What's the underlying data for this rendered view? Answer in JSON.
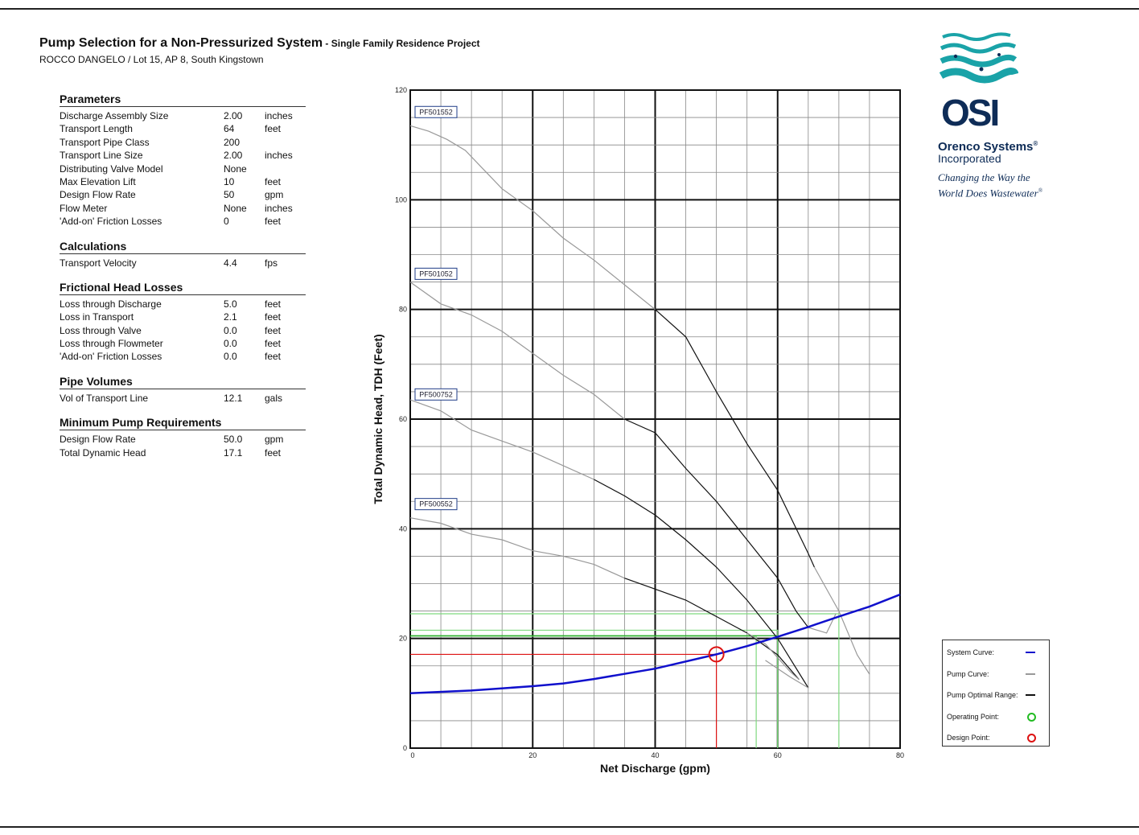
{
  "header": {
    "title": "Pump Selection for a Non-Pressurized System",
    "title_suffix": " - Single Family Residence Project",
    "subtitle": "ROCCO DANGELO / Lot 15, AP 8, South Kingstown"
  },
  "sections": [
    {
      "title": "Parameters",
      "rows": [
        {
          "label": "Discharge Assembly Size",
          "value": "2.00",
          "unit": "inches"
        },
        {
          "label": "Transport Length",
          "value": "64",
          "unit": "feet"
        },
        {
          "label": "Transport Pipe Class",
          "value": "200",
          "unit": ""
        },
        {
          "label": "Transport Line Size",
          "value": "2.00",
          "unit": "inches"
        },
        {
          "label": "Distributing Valve Model",
          "value": "None",
          "unit": ""
        },
        {
          "label": "Max Elevation Lift",
          "value": "10",
          "unit": "feet"
        },
        {
          "label": "Design Flow Rate",
          "value": "50",
          "unit": "gpm"
        },
        {
          "label": "Flow Meter",
          "value": "None",
          "unit": "inches"
        },
        {
          "label": "'Add-on' Friction Losses",
          "value": "0",
          "unit": "feet"
        }
      ]
    },
    {
      "title": "Calculations",
      "rows": [
        {
          "label": "Transport Velocity",
          "value": "4.4",
          "unit": "fps"
        }
      ]
    },
    {
      "title": "Frictional Head Losses",
      "rows": [
        {
          "label": "Loss through Discharge",
          "value": "5.0",
          "unit": "feet"
        },
        {
          "label": "Loss in Transport",
          "value": "2.1",
          "unit": "feet"
        },
        {
          "label": "Loss through Valve",
          "value": "0.0",
          "unit": "feet"
        },
        {
          "label": "Loss through Flowmeter",
          "value": "0.0",
          "unit": "feet"
        },
        {
          "label": "'Add-on' Friction Losses",
          "value": "0.0",
          "unit": "feet"
        }
      ]
    },
    {
      "title": "Pipe Volumes",
      "rows": [
        {
          "label": "Vol of Transport Line",
          "value": "12.1",
          "unit": "gals"
        }
      ]
    },
    {
      "title": "Minimum Pump Requirements",
      "rows": [
        {
          "label": "Design Flow Rate",
          "value": "50.0",
          "unit": "gpm"
        },
        {
          "label": "Total Dynamic Head",
          "value": "17.1",
          "unit": "feet"
        }
      ]
    }
  ],
  "logo": {
    "name": "Orenco Systems",
    "registered": "®",
    "inc": "Incorporated",
    "tagline_1": "Changing the Way the",
    "tagline_2": "World Does Wastewater",
    "tagline_reg": "®",
    "mark_text": "OSI",
    "color": "#0e2c57",
    "wave_color": "#1aa3a8"
  },
  "chart_data": {
    "type": "line",
    "xlabel": "Net Discharge (gpm)",
    "ylabel": "Total Dynamic Head, TDH (Feet)",
    "xlim": [
      0,
      80
    ],
    "ylim": [
      0,
      120
    ],
    "xticks": [
      0,
      20,
      40,
      60,
      80
    ],
    "yticks": [
      0,
      20,
      40,
      60,
      80,
      100,
      120
    ],
    "x_minor_step": 5,
    "y_minor_step": 5,
    "grid": true,
    "legend_position": "bottom-right",
    "legend": [
      {
        "label": "System Curve:",
        "symbol": "line",
        "color": "#1010cc"
      },
      {
        "label": "Pump Curve:",
        "symbol": "line",
        "color": "#999999"
      },
      {
        "label": "Pump Optimal Range:",
        "symbol": "line",
        "color": "#111111"
      },
      {
        "label": "Operating Point:",
        "symbol": "ring",
        "color": "#22bb22"
      },
      {
        "label": "Design Point:",
        "symbol": "ring",
        "color": "#dd1111"
      }
    ],
    "system_curve": {
      "color": "#1010cc",
      "points": [
        [
          0,
          10
        ],
        [
          10,
          10.5
        ],
        [
          20,
          11.3
        ],
        [
          25,
          11.8
        ],
        [
          30,
          12.6
        ],
        [
          40,
          14.5
        ],
        [
          50,
          17.1
        ],
        [
          55,
          18.6
        ],
        [
          60,
          20.3
        ],
        [
          65,
          22.1
        ],
        [
          70,
          24.0
        ],
        [
          75,
          25.8
        ],
        [
          80,
          28.0
        ]
      ]
    },
    "pump_curves": [
      {
        "name": "PF501552",
        "label_y": 116,
        "gray_left": [
          [
            0,
            113.5
          ],
          [
            3,
            112.5
          ],
          [
            6,
            111
          ],
          [
            9,
            109
          ],
          [
            12,
            105.5
          ],
          [
            15,
            102
          ],
          [
            20,
            98
          ],
          [
            25,
            93
          ],
          [
            30,
            89
          ],
          [
            35,
            84.5
          ],
          [
            40,
            80
          ]
        ],
        "black": [
          [
            40,
            80
          ],
          [
            45,
            75
          ],
          [
            50,
            65
          ],
          [
            55,
            55.5
          ],
          [
            60,
            47
          ],
          [
            65,
            35.5
          ],
          [
            66,
            33
          ]
        ],
        "gray_right": [
          [
            66,
            33
          ],
          [
            70,
            25
          ],
          [
            73,
            17
          ],
          [
            75,
            13.5
          ]
        ]
      },
      {
        "name": "PF501052",
        "label_y": 86.5,
        "gray_left": [
          [
            0,
            85
          ],
          [
            5,
            81
          ],
          [
            10,
            79
          ],
          [
            15,
            76
          ],
          [
            20,
            72
          ],
          [
            25,
            68
          ],
          [
            30,
            64.5
          ],
          [
            35,
            60
          ]
        ],
        "black": [
          [
            35,
            60
          ],
          [
            40,
            57.5
          ],
          [
            45,
            51
          ],
          [
            50,
            45
          ],
          [
            55,
            38
          ],
          [
            60,
            31
          ],
          [
            63,
            25
          ],
          [
            65,
            22
          ]
        ],
        "gray_right": [
          [
            65,
            22
          ],
          [
            68,
            21
          ],
          [
            69.5,
            24.5
          ]
        ]
      },
      {
        "name": "PF500752",
        "label_y": 64.5,
        "gray_left": [
          [
            0,
            63.5
          ],
          [
            5,
            61.5
          ],
          [
            10,
            58
          ],
          [
            15,
            56
          ],
          [
            20,
            54
          ],
          [
            25,
            51.5
          ],
          [
            30,
            49
          ]
        ],
        "black": [
          [
            30,
            49
          ],
          [
            35,
            46
          ],
          [
            40,
            42.5
          ],
          [
            45,
            38
          ],
          [
            50,
            33
          ],
          [
            55,
            27
          ],
          [
            60,
            20
          ],
          [
            65,
            11
          ]
        ],
        "gray_right": [
          [
            65,
            11
          ],
          [
            62,
            13
          ],
          [
            58,
            16
          ]
        ]
      },
      {
        "name": "PF500552",
        "label_y": 44.5,
        "gray_left": [
          [
            0,
            42
          ],
          [
            5,
            41
          ],
          [
            10,
            39
          ],
          [
            15,
            38
          ],
          [
            20,
            36
          ],
          [
            25,
            35
          ],
          [
            30,
            33.5
          ],
          [
            35,
            31
          ]
        ],
        "black": [
          [
            35,
            31
          ],
          [
            40,
            29
          ],
          [
            45,
            27
          ],
          [
            50,
            24
          ],
          [
            55,
            21
          ],
          [
            60,
            17
          ],
          [
            63.5,
            12.5
          ]
        ],
        "gray_right": [
          [
            63.5,
            12.5
          ],
          [
            62,
            14
          ],
          [
            58,
            19
          ],
          [
            55,
            21
          ]
        ]
      }
    ],
    "design_point": {
      "x": 50,
      "y": 17.1,
      "color": "#dd1111"
    },
    "operating_lines": [
      {
        "x": 56.5,
        "y": 20.4,
        "color": "#7fd97f"
      },
      {
        "x": 60,
        "y": 20.5,
        "color": "#22aa22"
      },
      {
        "x": 70,
        "y": 24.5,
        "color": "#7fd97f"
      },
      {
        "x": 60,
        "y": 21.5,
        "color": "#7fd97f"
      }
    ]
  }
}
